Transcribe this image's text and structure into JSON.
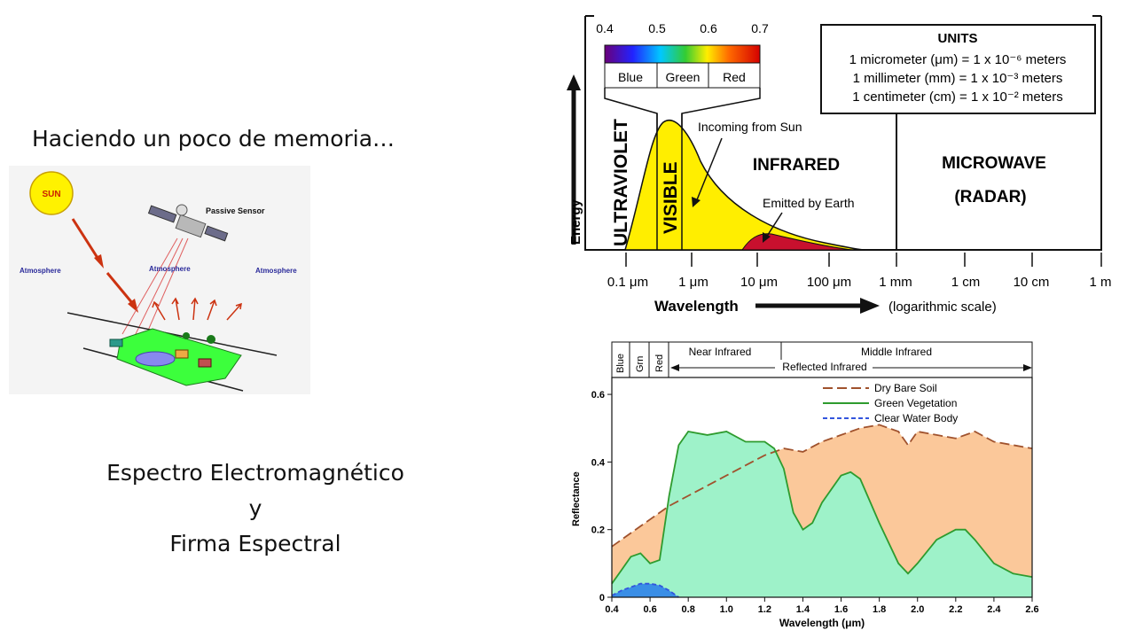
{
  "slide": {
    "title": "Haciendo un poco de memoria…",
    "caption_lines": [
      "Espectro Electromagnético",
      "y",
      "Firma Espectral"
    ]
  },
  "sensor_diagram": {
    "sun_label": "SUN",
    "sensor_label": "Passive Sensor",
    "atmosphere_labels": [
      "Atmosphere",
      "Atmosphere",
      "Atmosphere"
    ]
  },
  "em_spectrum": {
    "visible_bar_ticks": [
      "0.4",
      "0.5",
      "0.6",
      "0.7"
    ],
    "visible_bands": [
      "Blue",
      "Green",
      "Red"
    ],
    "units_box": {
      "title": "UNITS",
      "lines": [
        "1 micrometer (μm) = 1 x 10⁻⁶ meters",
        "1 millimeter (mm) = 1 x 10⁻³ meters",
        "1 centimeter (cm) = 1 x 10⁻² meters"
      ]
    },
    "region_labels": {
      "ultraviolet": "ULTRAVIOLET",
      "visible": "VISIBLE",
      "infrared": "INFRARED",
      "microwave": "MICROWAVE",
      "radar": "(RADAR)"
    },
    "annotations": {
      "incoming": "Incoming from Sun",
      "emitted": "Emitted by Earth"
    },
    "y_axis_label": "Energy",
    "x_ticks": [
      "0.1 μm",
      "1 μm",
      "10 μm",
      "100 μm",
      "1 mm",
      "1 cm",
      "10 cm",
      "1 m"
    ],
    "x_axis_label": "Wavelength",
    "scale_note": "(logarithmic scale)",
    "colors": {
      "sun_curve_fill": "#ffee00",
      "earth_curve_fill": "#c8102e"
    }
  },
  "chart_data": {
    "type": "area",
    "title": "",
    "xlabel": "Wavelength (μm)",
    "ylabel": "Reflectance",
    "xlim": [
      0.4,
      2.6
    ],
    "ylim": [
      0,
      0.65
    ],
    "x_ticks": [
      "0.4",
      "0.6",
      "0.8",
      "1.0",
      "1.2",
      "1.4",
      "1.6",
      "1.8",
      "2.0",
      "2.2",
      "2.4",
      "2.6"
    ],
    "y_ticks": [
      "0",
      "0.2",
      "0.4",
      "0.6"
    ],
    "band_header": {
      "narrow_bands": [
        "Blue",
        "Grn",
        "Red"
      ],
      "near_infrared": "Near Infrared",
      "middle_infrared": "Middle Infrared",
      "reflected_infrared": "Reflected Infrared"
    },
    "legend_position": "top-right",
    "series": [
      {
        "name": "Dry Bare Soil",
        "color": "#a0522d",
        "fill": "#fbc89a",
        "style": "long-dash",
        "x": [
          0.4,
          0.5,
          0.6,
          0.7,
          0.8,
          0.9,
          1.0,
          1.1,
          1.2,
          1.3,
          1.4,
          1.5,
          1.6,
          1.7,
          1.8,
          1.9,
          1.95,
          2.0,
          2.1,
          2.2,
          2.3,
          2.4,
          2.5,
          2.6
        ],
        "y": [
          0.15,
          0.19,
          0.23,
          0.27,
          0.3,
          0.33,
          0.36,
          0.39,
          0.42,
          0.44,
          0.43,
          0.46,
          0.48,
          0.5,
          0.51,
          0.49,
          0.45,
          0.49,
          0.48,
          0.47,
          0.49,
          0.46,
          0.45,
          0.44
        ]
      },
      {
        "name": "Green Vegetation",
        "color": "#2e9b2e",
        "fill": "#9ef2c9",
        "style": "solid",
        "x": [
          0.4,
          0.45,
          0.5,
          0.55,
          0.6,
          0.65,
          0.7,
          0.75,
          0.8,
          0.9,
          1.0,
          1.1,
          1.2,
          1.25,
          1.3,
          1.35,
          1.4,
          1.45,
          1.5,
          1.6,
          1.65,
          1.7,
          1.8,
          1.9,
          1.95,
          2.0,
          2.1,
          2.2,
          2.25,
          2.3,
          2.4,
          2.5,
          2.6
        ],
        "y": [
          0.04,
          0.08,
          0.12,
          0.13,
          0.1,
          0.11,
          0.3,
          0.45,
          0.49,
          0.48,
          0.49,
          0.46,
          0.46,
          0.44,
          0.38,
          0.25,
          0.2,
          0.22,
          0.28,
          0.36,
          0.37,
          0.35,
          0.22,
          0.1,
          0.07,
          0.1,
          0.17,
          0.2,
          0.2,
          0.17,
          0.1,
          0.07,
          0.06
        ]
      },
      {
        "name": "Clear Water Body",
        "color": "#3355dd",
        "fill": "#3a8ee6",
        "style": "short-dash",
        "x": [
          0.4,
          0.45,
          0.5,
          0.55,
          0.6,
          0.65,
          0.7,
          0.75
        ],
        "y": [
          0.005,
          0.02,
          0.03,
          0.04,
          0.04,
          0.035,
          0.02,
          0.0
        ]
      }
    ]
  }
}
